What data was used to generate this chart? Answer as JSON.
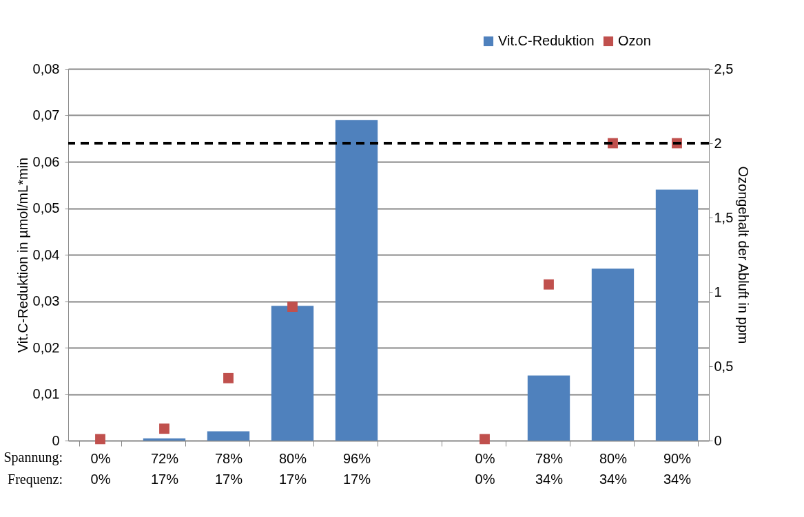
{
  "chart_data": {
    "type": "bar",
    "categories": [
      "0%\n0%",
      "72%\n17%",
      "78%\n17%",
      "80%\n17%",
      "96%\n17%",
      null,
      "0%\n0%",
      "78%\n34%",
      "80%\n34%",
      "90%\n34%"
    ],
    "series": [
      {
        "name": "Vit.C-Reduktion",
        "color": "#4f81bd",
        "values": [
          0,
          0.0005,
          0.002,
          0.029,
          0.069,
          null,
          0,
          0.014,
          0.037,
          0.054
        ]
      },
      {
        "name": "Ozon",
        "type": "scatter",
        "axis": "y2",
        "color": "#c0504d",
        "marker": "square",
        "values": [
          0.01,
          0.08,
          0.42,
          0.9,
          null,
          null,
          0.01,
          1.05,
          2.0,
          2.0
        ]
      }
    ],
    "ylabel": "Vit.C-Reduktion in µmol/mL*min",
    "y2label": "Ozongehalt der Abluft in ppm",
    "ylim": [
      0,
      0.08
    ],
    "yticks": [
      {
        "value": 0,
        "label": "0"
      },
      {
        "value": 0.01,
        "label": "0,01"
      },
      {
        "value": 0.02,
        "label": "0,02"
      },
      {
        "value": 0.03,
        "label": "0,03"
      },
      {
        "value": 0.04,
        "label": "0,04"
      },
      {
        "value": 0.05,
        "label": "0,05"
      },
      {
        "value": 0.06,
        "label": "0,06"
      },
      {
        "value": 0.07,
        "label": "0,07"
      },
      {
        "value": 0.08,
        "label": "0,08"
      }
    ],
    "y2lim": [
      0,
      2.5
    ],
    "y2ticks": [
      0,
      {
        "value": 0.5,
        "label": "0,5"
      },
      1,
      {
        "value": 1.5,
        "label": "1,5"
      },
      2,
      {
        "value": 2.5,
        "label": "2,5"
      }
    ],
    "ref_lines": [
      {
        "axis": "y2",
        "value": 2,
        "color": "#000000",
        "line_style": "dashed"
      }
    ],
    "annotations": [
      "Spannung:",
      "Frequenz:"
    ],
    "grid": "y",
    "legend": "top right"
  }
}
